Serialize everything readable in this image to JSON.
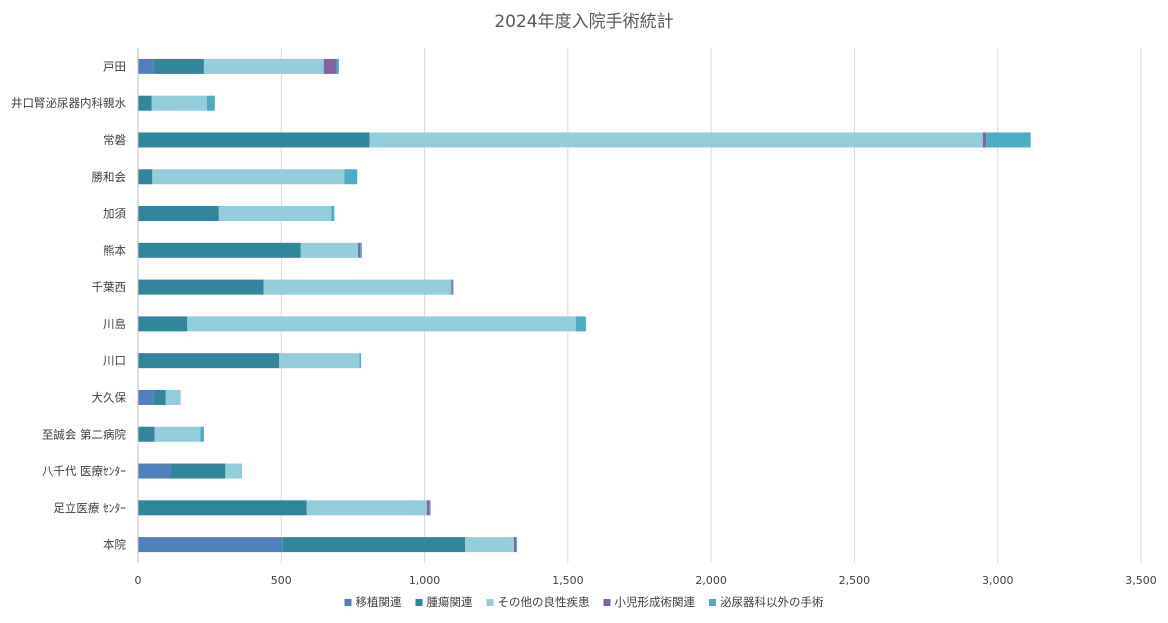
{
  "chart_data": {
    "type": "bar",
    "orientation": "horizontal",
    "stacked": true,
    "title": "2024年度入院手術統計",
    "categories": [
      "戸田",
      "井口腎泌尿器内科親水",
      "常磐",
      "勝和会",
      "加須",
      "熊本",
      "千葉西",
      "川島",
      "川口",
      "大久保",
      "至誠会 第二病院",
      "八千代 医療ｾﾝﾀｰ",
      "足立医療 ｾﾝﾀｰ",
      "本院"
    ],
    "series": [
      {
        "name": "移植関連",
        "color": "#4f81bd",
        "values": [
          55,
          0,
          0,
          0,
          0,
          0,
          0,
          0,
          0,
          55,
          0,
          115,
          0,
          505
        ]
      },
      {
        "name": "腫瘍関連",
        "color": "#31859c",
        "values": [
          175,
          48,
          808,
          50,
          282,
          568,
          438,
          172,
          493,
          42,
          58,
          190,
          588,
          637
        ]
      },
      {
        "name": "その他の良性疾患",
        "color": "#92cddc",
        "values": [
          418,
          192,
          2140,
          670,
          393,
          200,
          655,
          1356,
          280,
          52,
          160,
          58,
          420,
          170
        ]
      },
      {
        "name": "小児形成術関連",
        "color": "#8064a2",
        "values": [
          45,
          0,
          12,
          0,
          0,
          8,
          5,
          0,
          0,
          0,
          0,
          0,
          10,
          8
        ]
      },
      {
        "name": "泌尿器科以外の手術",
        "color": "#4bacc6",
        "values": [
          8,
          28,
          155,
          45,
          10,
          5,
          3,
          35,
          5,
          0,
          12,
          0,
          3,
          3
        ]
      }
    ],
    "x_ticks": [
      "0",
      "500",
      "1,000",
      "1,500",
      "2,000",
      "2,500",
      "3,000",
      "3,500"
    ],
    "xlim": [
      0,
      3500
    ],
    "grid": "vertical",
    "legend": "bottom"
  }
}
